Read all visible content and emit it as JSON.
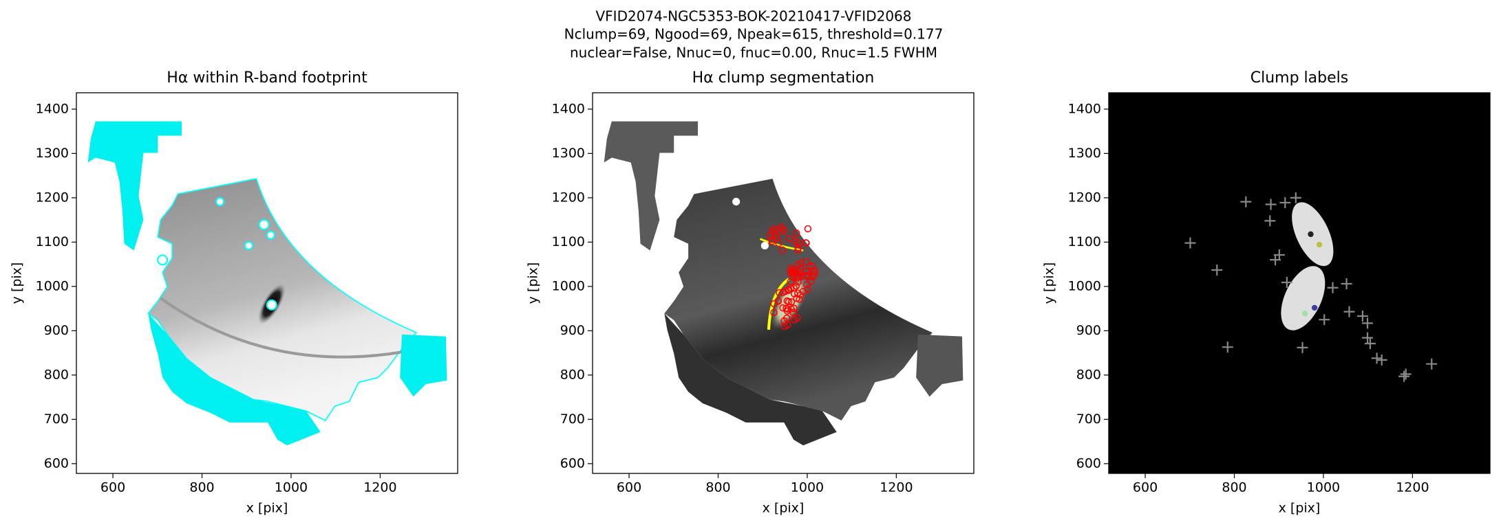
{
  "suptitle": [
    "VFID2074-NGC5353-BOK-20210417-VFID2068",
    "Nclump=69, Ngood=69, Npeak=615, threshold=0.177",
    "nuclear=False, Nnuc=0, fnuc=0.00, Rnuc=1.5 FWHM"
  ],
  "chart_data": [
    {
      "type": "image",
      "title": "Hα within R-band footprint",
      "xlabel": "x [pix]",
      "ylabel": "y [pix]",
      "xlim": [
        518,
        1374
      ],
      "ylim": [
        578,
        1437
      ],
      "xticks": [
        600,
        800,
        1000,
        1200
      ],
      "yticks": [
        600,
        700,
        800,
        900,
        1000,
        1100,
        1200,
        1300,
        1400
      ]
    },
    {
      "type": "image",
      "title": "Hα clump segmentation",
      "xlabel": "x [pix]",
      "ylabel": "y [pix]",
      "xlim": [
        518,
        1374
      ],
      "ylim": [
        578,
        1437
      ],
      "xticks": [
        600,
        800,
        1000,
        1200
      ],
      "yticks": [
        600,
        700,
        800,
        900,
        1000,
        1100,
        1200,
        1300,
        1400
      ]
    },
    {
      "type": "image",
      "title": "Clump labels",
      "xlabel": "x [pix]",
      "ylabel": "y [pix]",
      "xlim": [
        518,
        1374
      ],
      "ylim": [
        578,
        1437
      ],
      "xticks": [
        600,
        800,
        1000,
        1200
      ],
      "yticks": [
        600,
        700,
        800,
        900,
        1000,
        1100,
        1200,
        1300,
        1400
      ],
      "marker_color": "#888888",
      "x": [
        701,
        761,
        785,
        826,
        882,
        880,
        914,
        938,
        901,
        892,
        918,
        953,
        1002,
        1058,
        1088,
        1099,
        1052,
        1099,
        1105,
        1120,
        1131,
        1181,
        1185,
        1243,
        1021
      ],
      "y": [
        1098,
        1037,
        863,
        1191,
        1185,
        1148,
        1189,
        1200,
        1071,
        1060,
        1009,
        862,
        925,
        943,
        933,
        917,
        1006,
        884,
        871,
        838,
        834,
        797,
        802,
        825,
        997
      ]
    }
  ]
}
